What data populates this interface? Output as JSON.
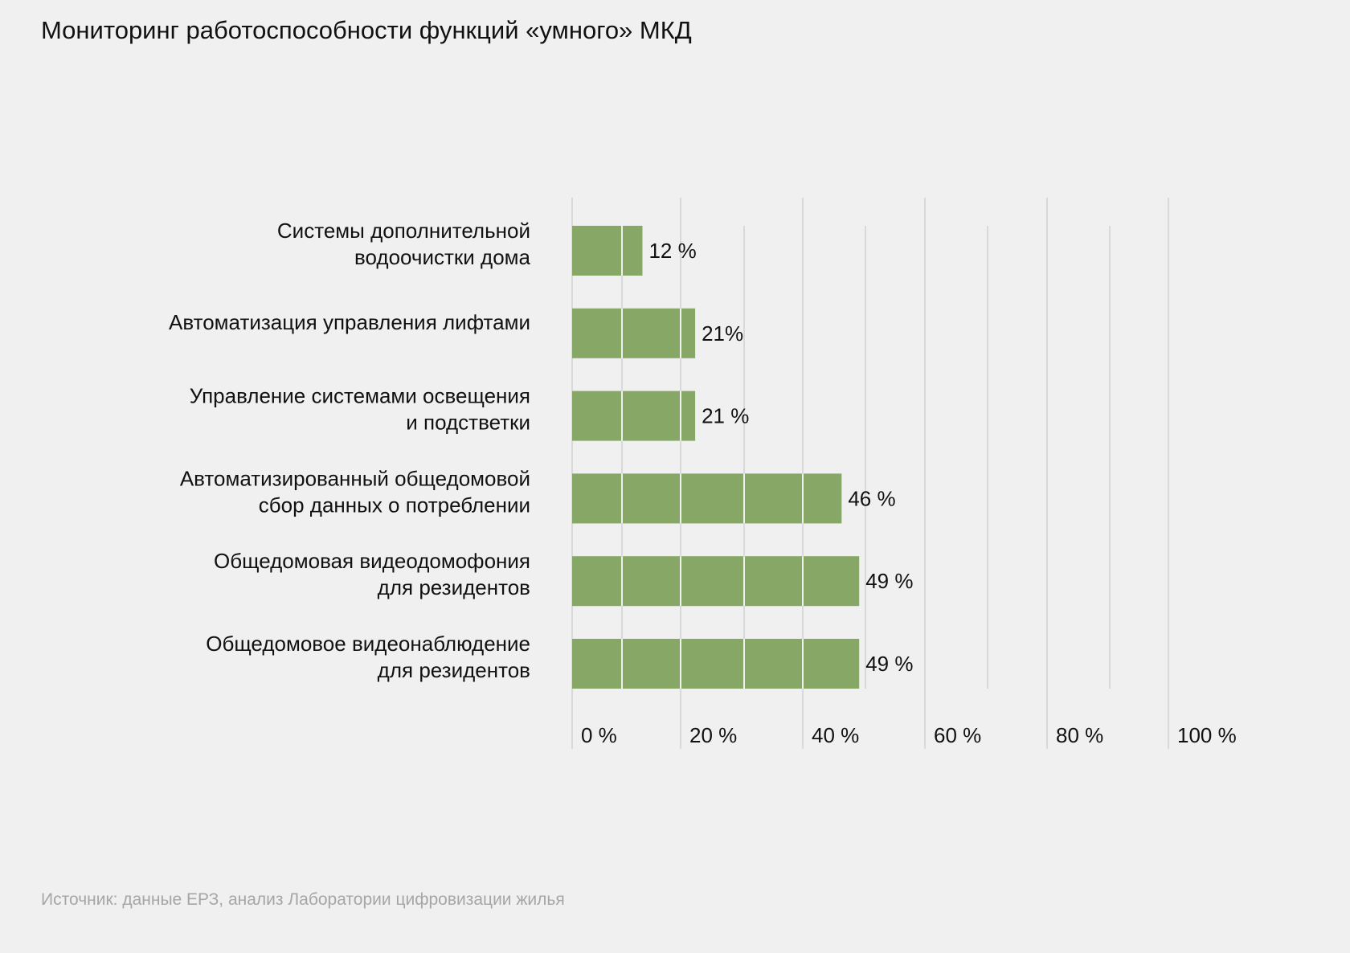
{
  "title": "Мониторинг работоспособности функций «умного» МКД",
  "footer": "Источник: данные ЕРЗ, анализ Лаборатории цифровизации жилья",
  "chart_data": {
    "type": "bar",
    "orientation": "horizontal",
    "title": "Мониторинг работоспособности функций «умного» МКД",
    "categories": [
      [
        "Системы дополнительной",
        "водоочистки дома"
      ],
      [
        "Автоматизация управления лифтами"
      ],
      [
        "Управление системами освещения",
        "и подстветки"
      ],
      [
        "Автоматизированный общедомовой",
        "сбор данных о потреблении"
      ],
      [
        "Общедомовая видеодомофония",
        "для резидентов"
      ],
      [
        "Общедомовое видеонаблюдение",
        "для резидентов"
      ]
    ],
    "values": [
      12,
      21,
      21,
      46,
      49,
      49
    ],
    "data_labels": [
      "12 %",
      "21%",
      "21 %",
      "46 %",
      "49 %",
      "49 %"
    ],
    "xlim": [
      0,
      100
    ],
    "x_ticks": [
      "0 %",
      "20 %",
      "40 %",
      "60 %",
      "80 %",
      "100 %"
    ],
    "xlabel": "",
    "ylabel": "",
    "grid": true,
    "bar_color": "#87a766",
    "grid_color": "#d9d9d9"
  }
}
